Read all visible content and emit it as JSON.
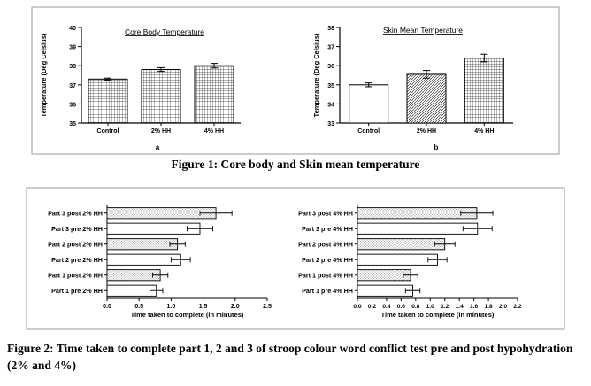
{
  "figure1_caption": "Figure 1: Core body and Skin mean temperature",
  "figure2_caption": "Figure 2: Time taken to complete part 1, 2 and 3 of stroop colour word conflict test pre and post hypohydration (2% and 4%)",
  "colors": {
    "panel_border": "#9a9a9a",
    "bar_stroke": "#000000",
    "bar_fill": "#ffffff",
    "stipple": "#555555",
    "grid": "#444444"
  },
  "chart_data": [
    {
      "type": "bar",
      "title": "Core Body Temperature",
      "panel_label": "a",
      "ylabel": "Temperature (Deg Celsius)",
      "categories": [
        "Control",
        "2% HH",
        "4% HH"
      ],
      "values": [
        37.3,
        37.8,
        38.0
      ],
      "errors": [
        0.05,
        0.1,
        0.12
      ],
      "ylim": [
        35,
        40
      ],
      "yticks": [
        35,
        36,
        37,
        38,
        39,
        40
      ],
      "fill_pattern": "grid"
    },
    {
      "type": "bar",
      "title": "Skin Mean Temperature",
      "panel_label": "b",
      "ylabel": "Temperature (Deg Celsius)",
      "categories": [
        "Control",
        "2% HH",
        "4% HH"
      ],
      "values": [
        35.0,
        35.55,
        36.4
      ],
      "errors": [
        0.1,
        0.2,
        0.2
      ],
      "ylim": [
        33,
        38
      ],
      "yticks": [
        33,
        34,
        35,
        36,
        37,
        38
      ],
      "fill_pattern": [
        "plain",
        "hatch",
        "grid"
      ]
    },
    {
      "type": "bar",
      "orientation": "horizontal",
      "categories": [
        "Part 3 post 2% HH",
        "Part 3 pre 2% HH",
        "Part 2 post 2% HH",
        "Part 2 pre 2% HH",
        "Part 1 post 2% HH",
        "Part 1 pre 2% HH"
      ],
      "values": [
        1.7,
        1.45,
        1.1,
        1.15,
        0.83,
        0.77
      ],
      "errors": [
        0.25,
        0.2,
        0.12,
        0.15,
        0.12,
        0.1
      ],
      "xlabel": "Time taken to complete (in minutes)",
      "xlim": [
        0,
        2.5
      ],
      "xticks": [
        "0.0",
        "0.5",
        "1.0",
        "1.5",
        "2.0",
        "2.5"
      ],
      "fill_pattern": [
        "stipple",
        "plain",
        "stipple",
        "plain",
        "stipple",
        "plain"
      ]
    },
    {
      "type": "bar",
      "orientation": "horizontal",
      "categories": [
        "Part 3 post 4% HH",
        "Part 3 pre 4% HH",
        "Part 2 post 4% HH",
        "Part 2 pre 4% HH",
        "Part 1 post 4% HH",
        "Part 1 pre 4% HH"
      ],
      "values": [
        1.64,
        1.65,
        1.2,
        1.1,
        0.73,
        0.76
      ],
      "errors": [
        0.22,
        0.2,
        0.14,
        0.13,
        0.1,
        0.1
      ],
      "xlabel": "Time taken to complete (in minutes)",
      "xlim": [
        0,
        2.2
      ],
      "xticks": [
        "0.0",
        "0.2",
        "0.4",
        "0.6",
        "0.8",
        "1.0",
        "1.2",
        "1.4",
        "1.6",
        "1.8",
        "2.0",
        "2.2"
      ],
      "fill_pattern": [
        "stipple",
        "plain",
        "stipple",
        "plain",
        "stipple",
        "plain"
      ]
    }
  ]
}
